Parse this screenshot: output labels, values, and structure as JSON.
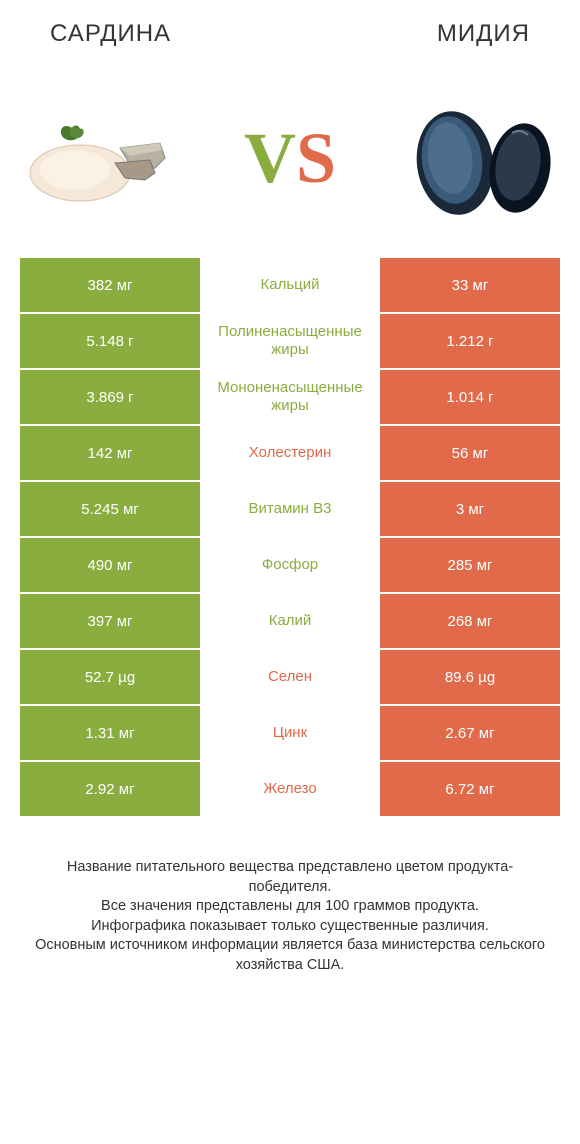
{
  "titles": {
    "left": "САРДИНА",
    "right": "МИДИЯ"
  },
  "vs": {
    "v": "V",
    "s": "S"
  },
  "colors": {
    "green": "#8aad3f",
    "orange": "#e06a4a"
  },
  "rows": [
    {
      "left": "382 мг",
      "mid": "Кальций",
      "right": "33 мг",
      "winner": "left"
    },
    {
      "left": "5.148 г",
      "mid": "Полиненасыщенные жиры",
      "right": "1.212 г",
      "winner": "left"
    },
    {
      "left": "3.869 г",
      "mid": "Мононенасыщенные жиры",
      "right": "1.014 г",
      "winner": "left"
    },
    {
      "left": "142 мг",
      "mid": "Холестерин",
      "right": "56 мг",
      "winner": "right"
    },
    {
      "left": "5.245 мг",
      "mid": "Витамин B3",
      "right": "3 мг",
      "winner": "left"
    },
    {
      "left": "490 мг",
      "mid": "Фосфор",
      "right": "285 мг",
      "winner": "left"
    },
    {
      "left": "397 мг",
      "mid": "Калий",
      "right": "268 мг",
      "winner": "left"
    },
    {
      "left": "52.7 µg",
      "mid": "Селен",
      "right": "89.6 µg",
      "winner": "right"
    },
    {
      "left": "1.31 мг",
      "mid": "Цинк",
      "right": "2.67 мг",
      "winner": "right"
    },
    {
      "left": "2.92 мг",
      "mid": "Железо",
      "right": "6.72 мг",
      "winner": "right"
    }
  ],
  "footer": [
    "Название питательного вещества представлено цветом продукта-победителя.",
    "Все значения представлены для 100 граммов продукта.",
    "Инфографика показывает только существенные различия.",
    "Основным источником информации является база министерства сельского хозяйства США."
  ]
}
